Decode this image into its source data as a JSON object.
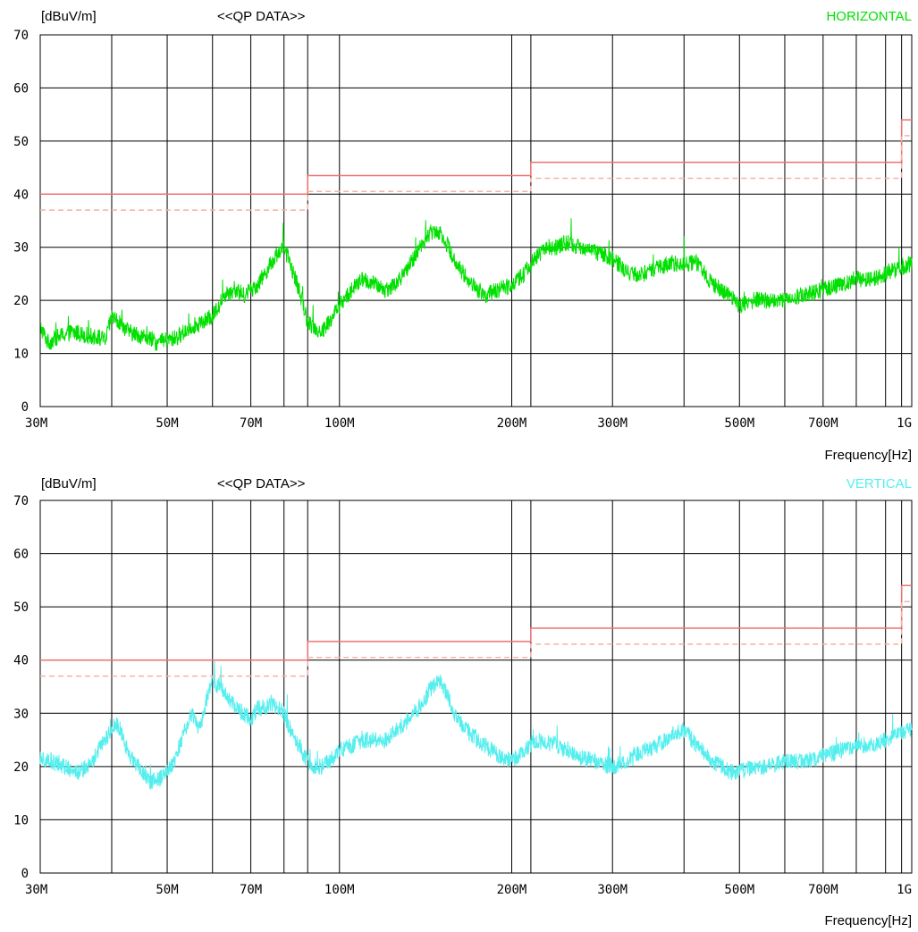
{
  "charts": [
    {
      "unit_label": "[dBuV/m]",
      "mode_label": "<<QP DATA>>",
      "polarization": "HORIZONTAL",
      "xlabel": "Frequency[Hz]"
    },
    {
      "unit_label": "[dBuV/m]",
      "mode_label": "<<QP DATA>>",
      "polarization": "VERTICAL",
      "xlabel": "Frequency[Hz]"
    }
  ],
  "chart_data": [
    {
      "type": "line",
      "title": "<<QP DATA>>",
      "ylabel": "[dBuV/m]",
      "xlabel": "Frequency[Hz]",
      "x_scale": "log",
      "xlim": [
        30,
        1000
      ],
      "ylim": [
        0,
        70
      ],
      "grid": true,
      "y_ticks": [
        0,
        10,
        20,
        30,
        40,
        50,
        60,
        70
      ],
      "x_tick_labels": [
        {
          "value": 30,
          "label": "30M"
        },
        {
          "value": 50,
          "label": "50M"
        },
        {
          "value": 70,
          "label": "70M"
        },
        {
          "value": 100,
          "label": "100M"
        },
        {
          "value": 200,
          "label": "200M"
        },
        {
          "value": 300,
          "label": "300M"
        },
        {
          "value": 500,
          "label": "500M"
        },
        {
          "value": 700,
          "label": "700M"
        },
        {
          "value": 1000,
          "label": "1G"
        }
      ],
      "x_grid_lines": [
        30,
        40,
        50,
        60,
        70,
        80,
        88,
        100,
        200,
        216,
        300,
        400,
        500,
        600,
        700,
        800,
        900,
        960,
        1000
      ],
      "limit_lines": [
        {
          "style": "solid",
          "color": "#f07070",
          "points": [
            [
              30,
              40
            ],
            [
              88,
              40
            ],
            [
              88,
              43.5
            ],
            [
              216,
              43.5
            ],
            [
              216,
              46
            ],
            [
              960,
              46
            ],
            [
              960,
              54
            ],
            [
              1000,
              54
            ]
          ]
        },
        {
          "style": "dashed",
          "color": "#f8b0a8",
          "points": [
            [
              30,
              37
            ],
            [
              88,
              37
            ],
            [
              88,
              40.5
            ],
            [
              216,
              40.5
            ],
            [
              216,
              43
            ],
            [
              960,
              43
            ],
            [
              960,
              51
            ],
            [
              1000,
              51
            ]
          ]
        }
      ],
      "series": [
        {
          "name": "HORIZONTAL",
          "color": "#00e000",
          "noise": 1.6,
          "x": [
            30,
            31,
            32,
            34,
            36,
            38,
            39,
            40,
            41,
            43,
            46,
            48,
            50,
            52,
            55,
            58,
            60,
            63,
            66,
            68,
            70,
            72,
            74,
            76,
            78,
            80,
            82,
            85,
            88,
            90,
            93,
            96,
            100,
            105,
            110,
            115,
            120,
            125,
            130,
            135,
            140,
            145,
            150,
            155,
            160,
            170,
            180,
            190,
            200,
            210,
            220,
            230,
            240,
            250,
            260,
            270,
            280,
            300,
            320,
            340,
            360,
            380,
            400,
            420,
            450,
            480,
            500,
            530,
            560,
            600,
            650,
            700,
            750,
            800,
            850,
            900,
            950,
            1000
          ],
          "y": [
            15,
            12,
            13,
            14,
            13.5,
            13,
            12.5,
            17,
            16,
            14,
            13,
            12,
            12.5,
            13,
            15,
            16,
            17,
            21,
            22,
            21,
            22,
            23,
            25,
            27,
            29,
            30,
            27,
            22,
            16,
            15,
            14,
            16,
            19,
            22,
            24,
            23,
            22,
            23,
            25,
            28,
            31,
            33,
            33,
            30,
            27,
            23,
            21,
            22,
            23,
            25,
            28,
            30,
            30,
            31,
            30,
            30,
            29,
            28,
            25,
            25,
            26,
            27,
            27,
            27,
            23,
            21,
            19,
            20,
            20,
            20,
            21,
            22,
            23,
            24,
            24,
            25,
            26,
            27
          ]
        },
        {
          "name": "VERTICAL",
          "color": "#55eeee",
          "noise": 1.6,
          "x": [
            30,
            31,
            33,
            35,
            37,
            39,
            40,
            41,
            43,
            45,
            47,
            49,
            51,
            53,
            55,
            57,
            59,
            60,
            62,
            64,
            66,
            68,
            70,
            72,
            74,
            76,
            78,
            80,
            82,
            85,
            88,
            90,
            93,
            96,
            100,
            105,
            110,
            120,
            130,
            140,
            145,
            150,
            155,
            160,
            170,
            180,
            190,
            200,
            210,
            220,
            240,
            260,
            280,
            300,
            320,
            340,
            360,
            380,
            400,
            420,
            450,
            480,
            500,
            530,
            560,
            600,
            650,
            700,
            750,
            800,
            850,
            900,
            950,
            1000
          ],
          "y": [
            22,
            21,
            20,
            19,
            21,
            25,
            27,
            28,
            22,
            19,
            17,
            18,
            20,
            25,
            30,
            27,
            34,
            36,
            35,
            33,
            31,
            30,
            29,
            31,
            31,
            32,
            31,
            30,
            27,
            24,
            21,
            20,
            20,
            21,
            23,
            24,
            25,
            25,
            28,
            32,
            35,
            36,
            33,
            29,
            26,
            24,
            22,
            21,
            23,
            25,
            24,
            22,
            21,
            20,
            21,
            23,
            24,
            26,
            27,
            24,
            21,
            19,
            19,
            20,
            20,
            21,
            21,
            22,
            23,
            24,
            24,
            25,
            26,
            27
          ]
        }
      ]
    }
  ]
}
